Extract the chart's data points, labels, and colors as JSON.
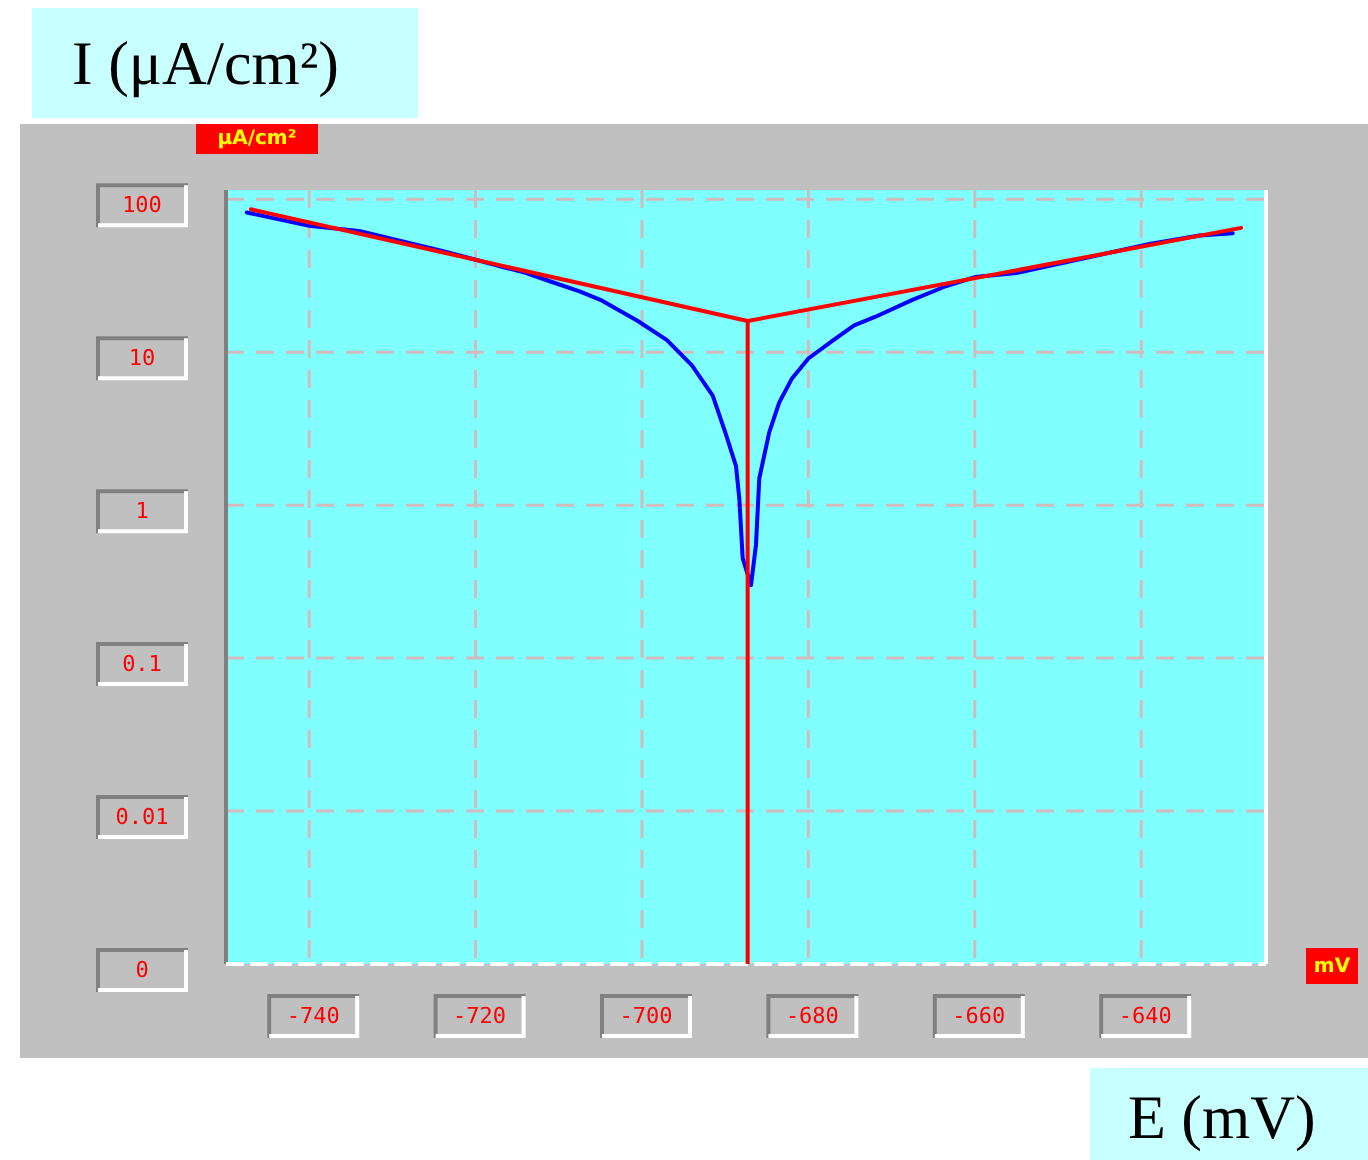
{
  "chart_data": {
    "type": "line",
    "xlabel": "E (mV)",
    "ylabel": "I (μA/cm²)",
    "annotations": [
      "μA/cm²",
      "mV"
    ],
    "xlim": [
      -750,
      -625
    ],
    "xticks": [
      -740,
      -720,
      -700,
      -680,
      -660,
      -640
    ],
    "ylim": [
      0.001,
      115
    ],
    "yticks": [
      {
        "value": 0.001,
        "label": "0"
      },
      0.01,
      0.1,
      1,
      10,
      100
    ],
    "log": "y",
    "grid": true,
    "line_style": "solid",
    "series": [
      {
        "color": "#0000ff",
        "x": [
          -747.5,
          -740,
          -734,
          -724,
          -714,
          -711,
          -707.5,
          -705,
          -700.5,
          -697,
          -694,
          -691.5,
          -690,
          -688.7,
          -688.3,
          -687.9,
          -686.9,
          -686.3,
          -685.9,
          -684.7,
          -683.5,
          -682,
          -680,
          -677,
          -674.5,
          -672,
          -667.5,
          -663.5,
          -660,
          -655,
          -647,
          -639,
          -633,
          -629
        ],
        "values": [
          82,
          67,
          62,
          46,
          33,
          29,
          25,
          22,
          16,
          12,
          8.2,
          5.2,
          3.0,
          1.8,
          1.1,
          0.45,
          0.3,
          0.55,
          1.5,
          3.0,
          4.7,
          6.7,
          9.1,
          12,
          15,
          17,
          22,
          27,
          31,
          33,
          41,
          51,
          58,
          60
        ]
      },
      {
        "color": "#ff0000",
        "x": [
          -747,
          -687.3,
          -628
        ],
        "values": [
          86,
          16,
          65
        ]
      },
      {
        "color": "#ff0000",
        "x": [
          -687.3,
          -687.3
        ],
        "values": [
          16,
          0.001
        ]
      }
    ]
  }
}
